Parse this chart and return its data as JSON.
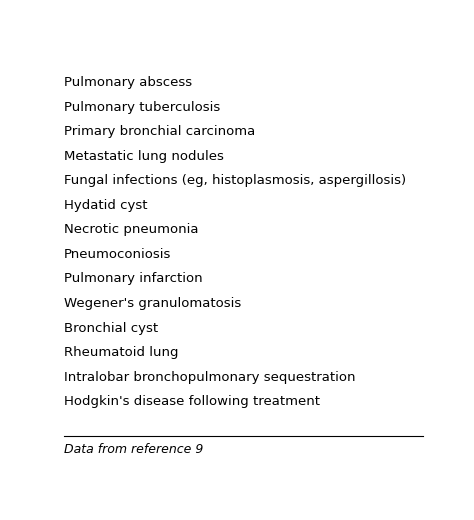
{
  "items": [
    "Pulmonary abscess",
    "Pulmonary tuberculosis",
    "Primary bronchial carcinoma",
    "Metastatic lung nodules",
    "Fungal infections (eg, histoplasmosis, aspergillosis)",
    "Hydatid cyst",
    "Necrotic pneumonia",
    "Pneumoconiosis",
    "Pulmonary infarction",
    "Wegener's granulomatosis",
    "Bronchial cyst",
    "Rheumatoid lung",
    "Intralobar bronchopulmonary sequestration",
    "Hodgkin's disease following treatment"
  ],
  "footer": "Data from reference 9",
  "background_color": "#ffffff",
  "text_color": "#000000",
  "font_size": 9.5,
  "footer_font_size": 9.0,
  "line_color": "#000000"
}
